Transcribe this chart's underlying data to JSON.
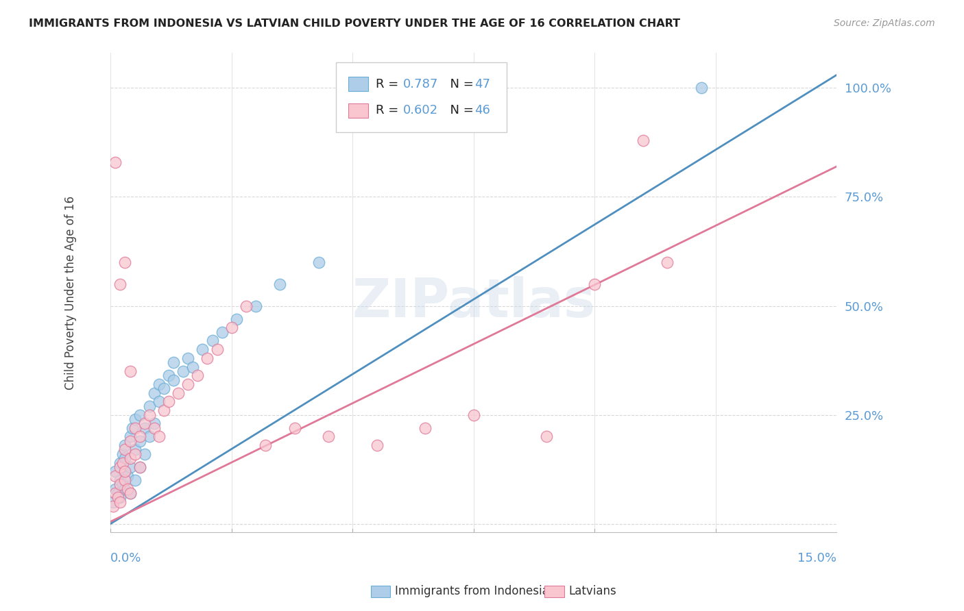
{
  "title": "IMMIGRANTS FROM INDONESIA VS LATVIAN CHILD POVERTY UNDER THE AGE OF 16 CORRELATION CHART",
  "source": "Source: ZipAtlas.com",
  "ylabel": "Child Poverty Under the Age of 16",
  "xmin": 0.0,
  "xmax": 0.15,
  "ymin": -0.02,
  "ymax": 1.08,
  "blue_fill": "#aecde8",
  "blue_edge": "#6aaed6",
  "pink_fill": "#f9c6d0",
  "pink_edge": "#e07898",
  "blue_line_color": "#4f8fbf",
  "pink_line_color": "#e07898",
  "blue_line_x": [
    0.0,
    0.15
  ],
  "blue_line_y": [
    0.0,
    1.03
  ],
  "pink_line_x": [
    0.0,
    0.15
  ],
  "pink_line_y": [
    0.005,
    0.82
  ],
  "grid_color": "#d8d8d8",
  "ytick_positions": [
    0.0,
    0.25,
    0.5,
    0.75,
    1.0
  ],
  "ytick_right_labels": [
    "",
    "25.0%",
    "50.0%",
    "75.0%",
    "100.0%"
  ],
  "ytick_right_color": "#5b9bd5",
  "watermark": "ZIPatlas",
  "legend_r1": "0.787",
  "legend_n1": "47",
  "legend_r2": "0.602",
  "legend_n2": "46",
  "legend_label1": "Immigrants from Indonesia",
  "legend_label2": "Latvians",
  "blue_scatter_x": [
    0.0005,
    0.001,
    0.001,
    0.0015,
    0.002,
    0.002,
    0.002,
    0.0025,
    0.0025,
    0.003,
    0.003,
    0.003,
    0.003,
    0.0035,
    0.004,
    0.004,
    0.004,
    0.0045,
    0.005,
    0.005,
    0.005,
    0.006,
    0.006,
    0.006,
    0.007,
    0.007,
    0.008,
    0.008,
    0.009,
    0.009,
    0.01,
    0.01,
    0.011,
    0.012,
    0.013,
    0.013,
    0.015,
    0.016,
    0.017,
    0.019,
    0.021,
    0.023,
    0.026,
    0.03,
    0.035,
    0.043,
    0.122
  ],
  "blue_scatter_y": [
    0.05,
    0.08,
    0.12,
    0.07,
    0.1,
    0.14,
    0.06,
    0.16,
    0.09,
    0.18,
    0.12,
    0.08,
    0.15,
    0.11,
    0.2,
    0.13,
    0.07,
    0.22,
    0.17,
    0.1,
    0.24,
    0.19,
    0.13,
    0.25,
    0.22,
    0.16,
    0.27,
    0.2,
    0.3,
    0.23,
    0.28,
    0.32,
    0.31,
    0.34,
    0.33,
    0.37,
    0.35,
    0.38,
    0.36,
    0.4,
    0.42,
    0.44,
    0.47,
    0.5,
    0.55,
    0.6,
    1.0
  ],
  "pink_scatter_x": [
    0.0005,
    0.001,
    0.001,
    0.0015,
    0.002,
    0.002,
    0.002,
    0.0025,
    0.003,
    0.003,
    0.003,
    0.0035,
    0.004,
    0.004,
    0.004,
    0.005,
    0.005,
    0.006,
    0.006,
    0.007,
    0.008,
    0.009,
    0.01,
    0.011,
    0.012,
    0.014,
    0.016,
    0.018,
    0.02,
    0.022,
    0.025,
    0.028,
    0.032,
    0.038,
    0.045,
    0.055,
    0.065,
    0.075,
    0.09,
    0.1,
    0.11,
    0.115,
    0.003,
    0.002,
    0.004,
    0.001
  ],
  "pink_scatter_y": [
    0.04,
    0.07,
    0.11,
    0.06,
    0.09,
    0.13,
    0.05,
    0.14,
    0.17,
    0.1,
    0.12,
    0.08,
    0.19,
    0.15,
    0.07,
    0.16,
    0.22,
    0.2,
    0.13,
    0.23,
    0.25,
    0.22,
    0.2,
    0.26,
    0.28,
    0.3,
    0.32,
    0.34,
    0.38,
    0.4,
    0.45,
    0.5,
    0.18,
    0.22,
    0.2,
    0.18,
    0.22,
    0.25,
    0.2,
    0.55,
    0.88,
    0.6,
    0.6,
    0.55,
    0.35,
    0.83
  ],
  "background": "#ffffff"
}
